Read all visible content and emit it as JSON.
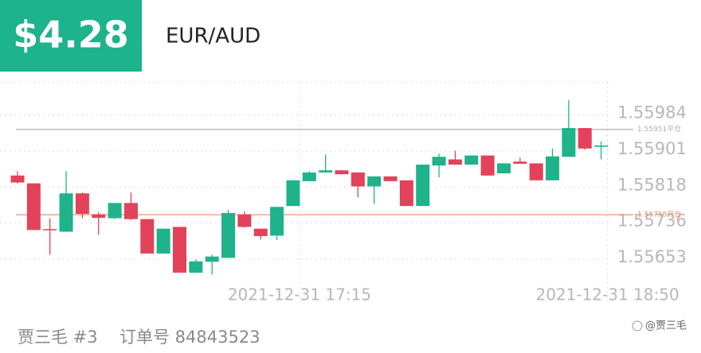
{
  "header": {
    "price": "$4.28",
    "symbol": "EUR/AUD"
  },
  "chart_data": {
    "type": "candlestick",
    "categories": [
      null,
      null,
      null,
      null,
      null,
      null,
      null,
      null,
      null,
      null,
      null,
      null,
      null,
      null,
      null,
      null,
      null,
      "2021-12-31 17:15",
      null,
      null,
      null,
      null,
      null,
      null,
      null,
      null,
      null,
      null,
      null,
      null,
      null,
      null,
      null,
      null,
      null,
      null,
      "2021-12-31 18:50"
    ],
    "open": [
      1.55845,
      1.55827,
      1.55722,
      1.55716,
      1.55804,
      1.55756,
      1.55747,
      1.55782,
      1.55745,
      1.55666,
      1.55727,
      1.55622,
      1.55647,
      1.55656,
      1.55756,
      1.55723,
      1.55707,
      1.55775,
      1.55832,
      1.55852,
      1.55857,
      1.55852,
      1.5582,
      1.55843,
      1.55834,
      1.55775,
      1.55868,
      1.55882,
      1.5587,
      1.55891,
      1.5585,
      1.55877,
      1.55873,
      1.55834,
      1.55888,
      1.55954,
      1.55911
    ],
    "high": [
      1.55855,
      1.55827,
      1.55747,
      1.55855,
      1.55806,
      1.55761,
      1.55782,
      1.55806,
      1.55745,
      1.55723,
      1.55727,
      1.55652,
      1.55663,
      1.55766,
      1.55763,
      1.55723,
      1.55773,
      1.55834,
      1.55855,
      1.55893,
      1.55857,
      1.55852,
      1.55843,
      1.55843,
      1.55834,
      1.5587,
      1.55895,
      1.55902,
      1.55891,
      1.55891,
      1.55873,
      1.55886,
      1.55873,
      1.55907,
      1.56018,
      1.55954,
      1.55923
    ],
    "low": [
      1.55827,
      1.5572,
      1.55663,
      1.55716,
      1.55747,
      1.55709,
      1.55745,
      1.55743,
      1.55666,
      1.55666,
      1.55622,
      1.55622,
      1.55618,
      1.55656,
      1.55725,
      1.55698,
      1.55697,
      1.55775,
      1.55832,
      1.55852,
      1.55848,
      1.55795,
      1.5578,
      1.55832,
      1.55775,
      1.55775,
      1.55841,
      1.5587,
      1.5587,
      1.55845,
      1.5585,
      1.55872,
      1.55834,
      1.55834,
      1.55888,
      1.55904,
      1.55882
    ],
    "close": [
      1.55829,
      1.5572,
      1.5572,
      1.55804,
      1.55757,
      1.55748,
      1.55782,
      1.55745,
      1.55666,
      1.55723,
      1.55622,
      1.55648,
      1.55659,
      1.55759,
      1.55727,
      1.55706,
      1.55773,
      1.55834,
      1.55852,
      1.55857,
      1.55848,
      1.5582,
      1.55843,
      1.55832,
      1.55775,
      1.5587,
      1.55888,
      1.5587,
      1.55891,
      1.55845,
      1.55873,
      1.55872,
      1.55834,
      1.55889,
      1.55954,
      1.55907,
      1.55914
    ],
    "up_color": "#1eb38b",
    "down_color": "#e2425a",
    "ylim": [
      1.556,
      1.5606
    ],
    "yticks": [
      1.55653,
      1.55736,
      1.55818,
      1.55901,
      1.55984
    ],
    "grid": true,
    "lines": [
      {
        "value": 1.55951,
        "label": "1.55951平仓",
        "color": "#b0b0b0"
      },
      {
        "value": 1.55755,
        "label": "1.55755开仓",
        "color": "#ef8a5e"
      }
    ]
  },
  "footer": {
    "account": "贾三毛 #3",
    "order": "订单号 84843523",
    "watermark": "@贾三毛"
  }
}
